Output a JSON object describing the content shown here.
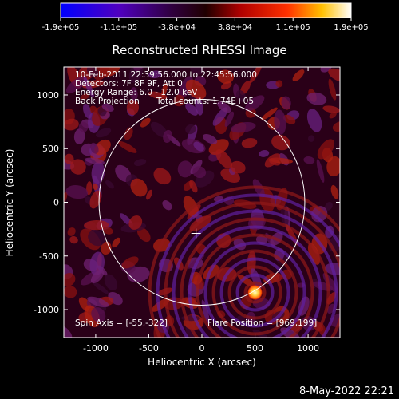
{
  "chart_data": {
    "type": "heatmap",
    "title": "Reconstructed RHESSI Image",
    "xlabel": "Heliocentric X (arcsec)",
    "ylabel": "Heliocentric Y (arcsec)",
    "xlim": [
      -1300,
      1300
    ],
    "ylim": [
      -1260,
      1260
    ],
    "x_ticks": [
      -1000,
      -500,
      0,
      500,
      1000
    ],
    "x_tick_labels": [
      "-1000",
      "-500",
      "0",
      "500",
      "1000"
    ],
    "y_ticks": [
      -1000,
      -500,
      0,
      500,
      1000
    ],
    "y_tick_labels": [
      "-1000",
      "-500",
      "0",
      "500",
      "1000"
    ],
    "colorbar": {
      "min": -190000,
      "max": 190000,
      "tick_labels": [
        "-1.9e+05",
        "-1.1e+05",
        "-3.8e+04",
        "3.8e+04",
        "1.1e+05",
        "1.9e+05"
      ],
      "colors": [
        "#0000ff",
        "#7000a0",
        "#2a0020",
        "#b00000",
        "#ff2000",
        "#ffb000",
        "#ffffff"
      ]
    },
    "solar_limb_radius_arcsec": 969,
    "sun_center_marker": [
      -55,
      -290
    ],
    "flare_source": {
      "x": 500,
      "y": -840,
      "color": "#ffee88"
    },
    "annotations": {
      "time_range": "10-Feb-2011 22:39:56.000 to 22:45:56.000",
      "detectors": "Detectors: 7F 8F 9F, Att 0",
      "energy_range": "Energy Range: 6.0 - 12.0 keV",
      "method": "Back Projection",
      "total_counts": "Total counts: 1.74E+05",
      "spin_axis": "Spin Axis = [-55,-322]",
      "flare_position": "Flare Position = [969,199]"
    }
  },
  "footer": {
    "timestamp": "8-May-2022 22:21"
  }
}
